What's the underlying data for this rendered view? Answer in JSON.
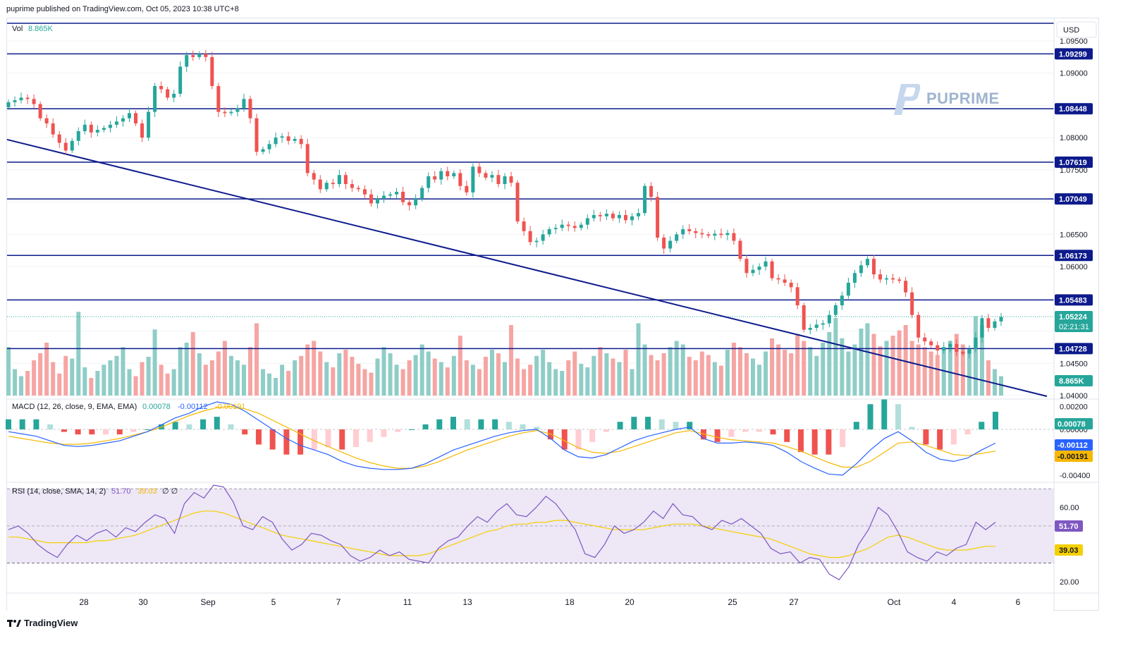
{
  "header": {
    "text": "puprime published on TradingView.com, Oct 05, 2023 10:38 UTC+8"
  },
  "footer": {
    "brand": "TradingView"
  },
  "watermark": {
    "text": "PUPRIME"
  },
  "currency_button": "USD",
  "volume_label": {
    "name": "Vol",
    "value": "8.865K"
  },
  "macd_label": {
    "name": "MACD (12, 26, close, 9, EMA, EMA)",
    "v1": "0.00078",
    "v2": "-0.00112",
    "v3": "-0.00191"
  },
  "rsi_label": {
    "name": "RSI (14, close, SMA, 14, 2)",
    "v1": "51.70",
    "v2": "39.03",
    "v3": "∅ ∅"
  },
  "colors": {
    "up": "#26a69a",
    "down": "#ef5350",
    "vol_up": "#8fcdc7",
    "vol_down": "#f5a5a3",
    "line": "#0d1b8c",
    "macd": "#2962ff",
    "signal": "#f5b700",
    "rsi": "#7e57c2",
    "rsi_ma": "#f5d000",
    "rsi_band": "#ede7f6"
  },
  "price_axis": {
    "ticks": [
      "1.09500",
      "1.09000",
      "1.08000",
      "1.07500",
      "1.06500",
      "1.06000",
      "1.04500",
      "1.04000"
    ]
  },
  "price_levels": [
    {
      "label": "1.09299",
      "price": 1.09299
    },
    {
      "label": "1.08448",
      "price": 1.08448
    },
    {
      "label": "1.07619",
      "price": 1.07619
    },
    {
      "label": "1.07049",
      "price": 1.07049
    },
    {
      "label": "1.06173",
      "price": 1.06173
    },
    {
      "label": "1.05483",
      "price": 1.05483
    },
    {
      "label": "1.04728",
      "price": 1.04728
    }
  ],
  "current_price": {
    "label": "1.05224",
    "countdown": "02:21:31",
    "price": 1.05224
  },
  "volume_tag": "8.865K",
  "macd_axis": {
    "ticks": [
      "0.00200",
      "0.00000",
      "-0.00400"
    ]
  },
  "macd_tags": [
    "0.00078",
    "-0.00112",
    "-0.00191"
  ],
  "rsi_axis": {
    "ticks": [
      "60.00",
      "20.00"
    ]
  },
  "rsi_tags": [
    "51.70",
    "39.03"
  ],
  "x_axis": {
    "labels": [
      "28",
      "30",
      "Sep",
      "5",
      "7",
      "11",
      "13",
      "18",
      "20",
      "25",
      "27",
      "Oct",
      "4",
      "6"
    ]
  },
  "chart_data": {
    "type": "candlestick",
    "symbol_quote": "USD",
    "price_range": [
      1.04,
      1.0985
    ],
    "trendline": {
      "from_price": 1.0797,
      "to_price": 1.04
    },
    "horizontal_levels": [
      1.09299,
      1.08448,
      1.07619,
      1.07049,
      1.06173,
      1.05483,
      1.04728
    ],
    "close_series": [
      1.0855,
      1.0858,
      1.0862,
      1.086,
      1.0852,
      1.083,
      1.0822,
      1.0805,
      1.0792,
      1.078,
      1.0795,
      1.081,
      1.082,
      1.0808,
      1.0812,
      1.0815,
      1.082,
      1.0825,
      1.083,
      1.0838,
      1.0822,
      1.08,
      1.084,
      1.088,
      1.0875,
      1.0862,
      1.0868,
      1.091,
      1.0928,
      1.0925,
      1.093,
      1.0925,
      1.088,
      1.084,
      1.0838,
      1.084,
      1.0845,
      1.086,
      1.083,
      1.0778,
      1.0782,
      1.079,
      1.08,
      1.0802,
      1.0795,
      1.0798,
      1.079,
      1.0745,
      1.0735,
      1.072,
      1.073,
      1.0728,
      1.0742,
      1.0728,
      1.0722,
      1.072,
      1.0712,
      1.0698,
      1.0705,
      1.071,
      1.0712,
      1.0716,
      1.07,
      1.0695,
      1.0705,
      1.0722,
      1.074,
      1.0735,
      1.0748,
      1.074,
      1.0745,
      1.0725,
      1.0715,
      1.0755,
      1.0745,
      1.0738,
      1.0742,
      1.0728,
      1.074,
      1.073,
      1.067,
      1.0655,
      1.0638,
      1.064,
      1.065,
      1.0658,
      1.066,
      1.0665,
      1.0663,
      1.066,
      1.0665,
      1.0675,
      1.068,
      1.0678,
      1.0682,
      1.0675,
      1.068,
      1.0672,
      1.0678,
      1.0683,
      1.0725,
      1.0708,
      1.0645,
      1.0628,
      1.064,
      1.065,
      1.0658,
      1.0655,
      1.0652,
      1.065,
      1.0648,
      1.0651,
      1.0649,
      1.0652,
      1.064,
      1.0612,
      1.059,
      1.0595,
      1.06,
      1.0608,
      1.0582,
      1.058,
      1.0575,
      1.0568,
      1.054,
      1.0502,
      1.0505,
      1.051,
      1.0512,
      1.0525,
      1.054,
      1.0555,
      1.0575,
      1.059,
      1.0602,
      1.0612,
      1.0588,
      1.058,
      1.0582,
      1.058,
      1.0578,
      1.056,
      1.0525,
      1.049,
      1.0484,
      1.0478,
      1.047,
      1.0475,
      1.048,
      1.0468,
      1.0465,
      1.0472,
      1.049,
      1.052,
      1.0505,
      1.0515,
      1.0522
    ],
    "volume_series": [
      0.55,
      0.3,
      0.22,
      0.28,
      0.4,
      0.48,
      0.6,
      0.38,
      0.25,
      0.45,
      0.42,
      0.95,
      0.32,
      0.2,
      0.28,
      0.35,
      0.4,
      0.45,
      0.55,
      0.3,
      0.22,
      0.38,
      0.44,
      0.75,
      0.35,
      0.25,
      0.3,
      0.55,
      0.6,
      0.72,
      0.48,
      0.35,
      0.4,
      0.5,
      0.62,
      0.45,
      0.4,
      0.35,
      0.55,
      0.82,
      0.3,
      0.25,
      0.2,
      0.35,
      0.28,
      0.4,
      0.45,
      0.58,
      0.62,
      0.5,
      0.38,
      0.32,
      0.48,
      0.52,
      0.44,
      0.36,
      0.3,
      0.26,
      0.42,
      0.55,
      0.48,
      0.35,
      0.3,
      0.4,
      0.46,
      0.58,
      0.5,
      0.42,
      0.38,
      0.32,
      0.45,
      0.68,
      0.4,
      0.35,
      0.3,
      0.44,
      0.52,
      0.48,
      0.38,
      0.8,
      0.42,
      0.3,
      0.35,
      0.45,
      0.52,
      0.38,
      0.3,
      0.28,
      0.4,
      0.5,
      0.36,
      0.32,
      0.45,
      0.55,
      0.48,
      0.42,
      0.38,
      0.52,
      0.3,
      0.82,
      0.58,
      0.46,
      0.4,
      0.48,
      0.55,
      0.62,
      0.58,
      0.44,
      0.4,
      0.5,
      0.46,
      0.38,
      0.34,
      0.52,
      0.6,
      0.55,
      0.48,
      0.42,
      0.35,
      0.5,
      0.65,
      0.58,
      0.52,
      0.48,
      0.7,
      0.62,
      0.55,
      0.45,
      0.6,
      0.72,
      0.88,
      0.65,
      0.5,
      0.58,
      0.76,
      0.82,
      0.7,
      0.56,
      0.62,
      0.68,
      0.74,
      0.8,
      0.62,
      0.58,
      0.55,
      0.5,
      0.46,
      0.55,
      0.62,
      0.7,
      0.58,
      0.52,
      0.9,
      0.8,
      0.4,
      0.3,
      0.22
    ]
  },
  "macd_data": {
    "range": [
      -0.0045,
      0.0024
    ],
    "macd": [
      -0.0002,
      -0.0004,
      -0.0006,
      -0.001,
      -0.0014,
      -0.0015,
      -0.0014,
      -0.0012,
      -0.001,
      -0.0006,
      -0.0002,
      0.0004,
      0.001,
      0.0014,
      0.002,
      0.0024,
      0.0022,
      0.0016,
      0.0008,
      0.0,
      -0.0008,
      -0.0014,
      -0.0018,
      -0.0022,
      -0.0028,
      -0.0032,
      -0.0034,
      -0.0035,
      -0.0035,
      -0.0034,
      -0.003,
      -0.0024,
      -0.0018,
      -0.0014,
      -0.001,
      -0.0006,
      -0.0003,
      -0.0001,
      0.0,
      -0.0008,
      -0.0018,
      -0.0024,
      -0.0025,
      -0.0022,
      -0.0016,
      -0.001,
      -0.0006,
      -0.0003,
      0.0,
      0.0002,
      -0.0008,
      -0.0012,
      -0.0012,
      -0.0011,
      -0.0012,
      -0.0014,
      -0.002,
      -0.0028,
      -0.0034,
      -0.0039,
      -0.004,
      -0.003,
      -0.0018,
      -0.0008,
      -0.0002,
      -0.001,
      -0.002,
      -0.0026,
      -0.0028,
      -0.0025,
      -0.0018,
      -0.0012
    ],
    "signal": [
      -0.0006,
      -0.0008,
      -0.001,
      -0.0012,
      -0.0013,
      -0.0013,
      -0.0012,
      -0.001,
      -0.0008,
      -0.0005,
      -0.0002,
      0.0002,
      0.0007,
      0.0012,
      0.0016,
      0.0019,
      0.002,
      0.0018,
      0.0014,
      0.0008,
      0.0002,
      -0.0004,
      -0.001,
      -0.0015,
      -0.002,
      -0.0025,
      -0.0029,
      -0.0032,
      -0.0034,
      -0.0034,
      -0.0032,
      -0.0028,
      -0.0023,
      -0.0018,
      -0.0014,
      -0.001,
      -0.0006,
      -0.0003,
      -0.0001,
      -0.0004,
      -0.001,
      -0.0016,
      -0.002,
      -0.0021,
      -0.0019,
      -0.0015,
      -0.0011,
      -0.0007,
      -0.0003,
      -0.0001,
      -0.0004,
      -0.0007,
      -0.0009,
      -0.001,
      -0.0011,
      -0.0012,
      -0.0015,
      -0.0019,
      -0.0024,
      -0.0029,
      -0.0033,
      -0.0033,
      -0.0028,
      -0.002,
      -0.0012,
      -0.0011,
      -0.0014,
      -0.0018,
      -0.0022,
      -0.0023,
      -0.0021,
      -0.0019
    ]
  },
  "rsi_data": {
    "range": [
      15,
      72
    ],
    "rsi": [
      48,
      50,
      46,
      40,
      36,
      33,
      40,
      45,
      42,
      46,
      48,
      44,
      49,
      47,
      52,
      56,
      54,
      46,
      62,
      68,
      65,
      72,
      71,
      63,
      50,
      48,
      55,
      52,
      43,
      37,
      40,
      46,
      45,
      42,
      40,
      34,
      31,
      33,
      37,
      34,
      36,
      32,
      31,
      30,
      38,
      42,
      44,
      50,
      55,
      52,
      58,
      62,
      56,
      55,
      60,
      66,
      62,
      55,
      48,
      35,
      33,
      40,
      50,
      46,
      48,
      52,
      58,
      54,
      62,
      56,
      55,
      50,
      48,
      53,
      51,
      54,
      50,
      46,
      38,
      35,
      36,
      30,
      33,
      32,
      24,
      21,
      28,
      40,
      48,
      60,
      56,
      47,
      36,
      33,
      31,
      36,
      34,
      38,
      40,
      52,
      48,
      52
    ],
    "rsi_ma": [
      44,
      44,
      43,
      42,
      41,
      41,
      41,
      41,
      41,
      42,
      42,
      43,
      44,
      45,
      47,
      49,
      51,
      53,
      55,
      57,
      58,
      58,
      57,
      55,
      53,
      51,
      49,
      47,
      45,
      44,
      43,
      42,
      41,
      40,
      39,
      38,
      37,
      36,
      35,
      34,
      34,
      34,
      34,
      35,
      37,
      39,
      41,
      43,
      45,
      47,
      48,
      50,
      51,
      51,
      52,
      52,
      53,
      53,
      52,
      51,
      50,
      49,
      48,
      48,
      48,
      48,
      49,
      50,
      51,
      51,
      51,
      50,
      49,
      48,
      47,
      46,
      45,
      44,
      43,
      41,
      39,
      37,
      35,
      34,
      33,
      33,
      34,
      36,
      38,
      41,
      44,
      45,
      44,
      42,
      40,
      38,
      37,
      37,
      37,
      38,
      39,
      39
    ]
  }
}
